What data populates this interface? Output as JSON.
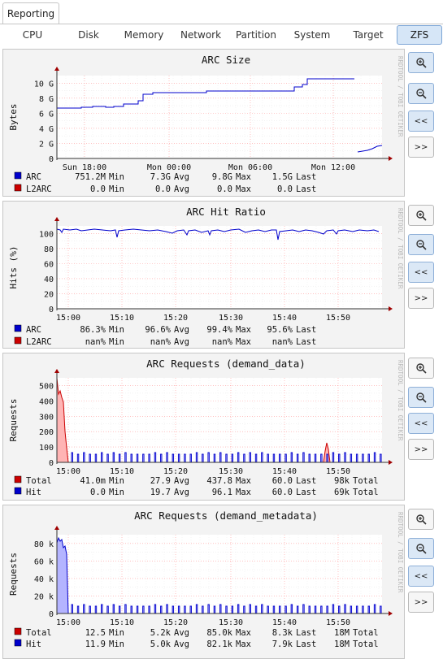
{
  "tabs": {
    "main": "Reporting"
  },
  "subtabs": [
    "CPU",
    "Disk",
    "Memory",
    "Network",
    "Partition",
    "System",
    "Target",
    "ZFS"
  ],
  "active_subtab": "ZFS",
  "watermark": "RRDTOOL / TOBI OETIKER",
  "buttons": {
    "back": "<<",
    "forward": ">>",
    "zoom_in_icon": "zoom-in-icon",
    "zoom_out_icon": "zoom-out-icon"
  },
  "colors": {
    "blue": "#0000cc",
    "red": "#cc0000",
    "blue_fill": "#b4b4ff",
    "red_fill": "#ffb4b4",
    "grid": "#ff9a9a",
    "arrow": "#a00000"
  },
  "graphs": [
    {
      "title": "ARC Size",
      "ylabel": "Bytes",
      "y_ticks": [
        "0",
        "2 G",
        "4 G",
        "6 G",
        "8 G",
        "10 G"
      ],
      "x_ticks": [
        "Sun 18:00",
        "Mon 00:00",
        "Mon 06:00",
        "Mon 12:00"
      ],
      "legend": [
        {
          "name": "ARC",
          "min": "751.2M",
          "min_label": "Min",
          "avg": "7.3G",
          "avg_label": "Avg",
          "max": "9.8G",
          "max_label": "Max",
          "last": "1.5G",
          "last_label": "Last"
        },
        {
          "name": "L2ARC",
          "min": "0.0",
          "min_label": "Min",
          "avg": "0.0",
          "avg_label": "Avg",
          "max": "0.0",
          "max_label": "Max",
          "last": "0.0",
          "last_label": "Last"
        }
      ]
    },
    {
      "title": "ARC Hit Ratio",
      "ylabel": "Hits (%)",
      "y_ticks": [
        "0",
        "20",
        "40",
        "60",
        "80",
        "100"
      ],
      "x_ticks": [
        "15:00",
        "15:10",
        "15:20",
        "15:30",
        "15:40",
        "15:50"
      ],
      "legend": [
        {
          "name": "ARC",
          "min": "86.3%",
          "min_label": "Min",
          "avg": "96.6%",
          "avg_label": "Avg",
          "max": "99.4%",
          "max_label": "Max",
          "last": "95.6%",
          "last_label": "Last"
        },
        {
          "name": "L2ARC",
          "min": "nan%",
          "min_label": "Min",
          "avg": "nan%",
          "avg_label": "Avg",
          "max": "nan%",
          "max_label": "Max",
          "last": "nan%",
          "last_label": "Last"
        }
      ]
    },
    {
      "title": "ARC Requests (demand_data)",
      "ylabel": "Requests",
      "y_ticks": [
        "0",
        "100",
        "200",
        "300",
        "400",
        "500"
      ],
      "x_ticks": [
        "15:00",
        "15:10",
        "15:20",
        "15:30",
        "15:40",
        "15:50"
      ],
      "legend": [
        {
          "name": "Total",
          "min": "41.0m",
          "min_label": "Min",
          "avg": "27.9",
          "avg_label": "Avg",
          "max": "437.8",
          "max_label": "Max",
          "last": "60.0",
          "last_label": "Last",
          "total": "98k",
          "total_label": "Total"
        },
        {
          "name": "Hit",
          "min": "0.0",
          "min_label": "Min",
          "avg": "19.7",
          "avg_label": "Avg",
          "max": "96.1",
          "max_label": "Max",
          "last": "60.0",
          "last_label": "Last",
          "total": "69k",
          "total_label": "Total"
        }
      ]
    },
    {
      "title": "ARC Requests (demand_metadata)",
      "ylabel": "Requests",
      "y_ticks": [
        "0",
        "20 k",
        "40 k",
        "60 k",
        "80 k"
      ],
      "x_ticks": [
        "15:00",
        "15:10",
        "15:20",
        "15:30",
        "15:40",
        "15:50"
      ],
      "legend": [
        {
          "name": "Total",
          "min": "12.5",
          "min_label": "Min",
          "avg": "5.2k",
          "avg_label": "Avg",
          "max": "85.0k",
          "max_label": "Max",
          "last": "8.3k",
          "last_label": "Last",
          "total": "18M",
          "total_label": "Total"
        },
        {
          "name": "Hit",
          "min": "11.9",
          "min_label": "Min",
          "avg": "5.0k",
          "avg_label": "Avg",
          "max": "82.1k",
          "max_label": "Max",
          "last": "7.9k",
          "last_label": "Last",
          "total": "18M",
          "total_label": "Total"
        }
      ]
    }
  ]
}
